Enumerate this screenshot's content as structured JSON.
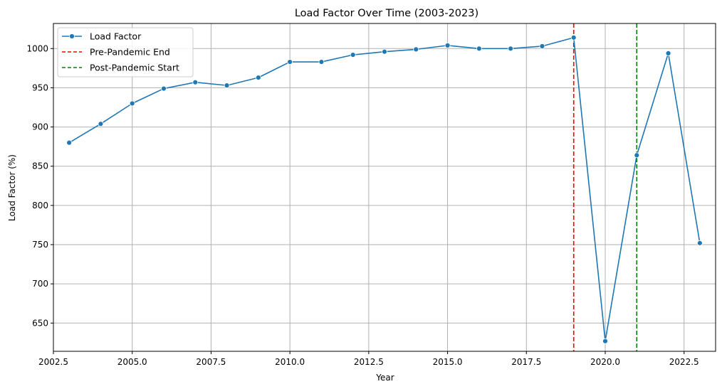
{
  "chart_data": {
    "type": "line",
    "title": "Load Factor Over Time (2003-2023)",
    "xlabel": "Year",
    "ylabel": "Load Factor (%)",
    "xlim": [
      2002.5,
      2023.5
    ],
    "ylim": [
      614,
      1032
    ],
    "x_ticks": [
      2002.5,
      2005.0,
      2007.5,
      2010.0,
      2012.5,
      2015.0,
      2017.5,
      2020.0,
      2022.5
    ],
    "x_tick_labels": [
      "2002.5",
      "2005.0",
      "2007.5",
      "2010.0",
      "2012.5",
      "2015.0",
      "2017.5",
      "2020.0",
      "2022.5"
    ],
    "y_ticks": [
      650,
      700,
      750,
      800,
      850,
      900,
      950,
      1000
    ],
    "y_tick_labels": [
      "650",
      "700",
      "750",
      "800",
      "850",
      "900",
      "950",
      "1000"
    ],
    "grid": true,
    "legend_position": "top-left",
    "series": [
      {
        "name": "Load Factor",
        "color": "#1f77b4",
        "marker": "circle",
        "x": [
          2003,
          2004,
          2005,
          2006,
          2007,
          2008,
          2009,
          2010,
          2011,
          2012,
          2013,
          2014,
          2015,
          2016,
          2017,
          2018,
          2019,
          2020,
          2021,
          2022,
          2023
        ],
        "y": [
          880,
          904,
          930,
          949,
          957,
          953,
          963,
          983,
          983,
          992,
          996,
          999,
          1004,
          1000,
          1000,
          1003,
          1014,
          627,
          864,
          994,
          752
        ]
      }
    ],
    "vlines": [
      {
        "name": "Pre-Pandemic End",
        "x": 2019,
        "color": "#ff0000",
        "style": "dashed"
      },
      {
        "name": "Post-Pandemic Start",
        "x": 2021,
        "color": "#008000",
        "style": "dashed"
      }
    ]
  }
}
